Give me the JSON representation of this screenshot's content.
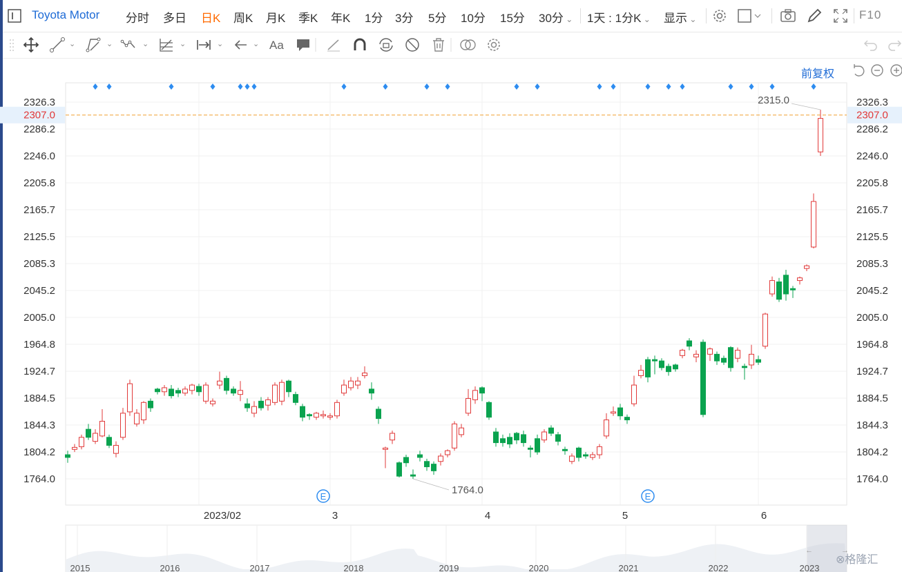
{
  "header": {
    "title": "Toyota Motor",
    "periods": [
      "分时",
      "多日",
      "日K",
      "周K",
      "月K",
      "季K",
      "年K",
      "1分",
      "3分",
      "5分",
      "10分",
      "15分",
      "30分"
    ],
    "active_period": "日K",
    "interval_select": "1天 : 1分K",
    "display_select": "显示",
    "f10_label": "F10"
  },
  "chart": {
    "adjust_label": "前复权",
    "price_ticks": [
      "2326.3",
      "2286.2",
      "2246.0",
      "2205.8",
      "2165.7",
      "2125.5",
      "2085.3",
      "2045.2",
      "2005.0",
      "1964.8",
      "1924.7",
      "1884.5",
      "1844.3",
      "1804.2",
      "1764.0"
    ],
    "current_price": "2307.0",
    "high_label": "2315.0",
    "low_label": "1764.0",
    "x_labels": [
      "2023/02",
      "3",
      "4",
      "5",
      "6"
    ],
    "event_marker": "E",
    "nav_years": [
      "2015",
      "2016",
      "2017",
      "2018",
      "2019",
      "2020",
      "2021",
      "2022",
      "2023"
    ]
  },
  "chart_data": {
    "type": "candlestick",
    "ylim": [
      1764.0,
      2326.3
    ],
    "x_ticks": [
      "2023/02",
      "3",
      "4",
      "5",
      "6"
    ],
    "candles": [
      [
        1800,
        1796,
        1806,
        1788
      ],
      [
        1808,
        1811,
        1816,
        1804
      ],
      [
        1812,
        1826,
        1830,
        1808
      ],
      [
        1838,
        1826,
        1846,
        1822
      ],
      [
        1820,
        1832,
        1838,
        1816
      ],
      [
        1828,
        1850,
        1868,
        1826
      ],
      [
        1826,
        1814,
        1830,
        1810
      ],
      [
        1802,
        1814,
        1820,
        1796
      ],
      [
        1826,
        1862,
        1870,
        1822
      ],
      [
        1864,
        1906,
        1912,
        1858
      ],
      [
        1846,
        1862,
        1868,
        1842
      ],
      [
        1852,
        1878,
        1880,
        1846
      ],
      [
        1880,
        1870,
        1884,
        1864
      ],
      [
        1898,
        1894,
        1900,
        1890
      ],
      [
        1894,
        1900,
        1904,
        1888
      ],
      [
        1898,
        1888,
        1904,
        1884
      ],
      [
        1896,
        1892,
        1900,
        1886
      ],
      [
        1892,
        1898,
        1902,
        1888
      ],
      [
        1896,
        1904,
        1906,
        1890
      ],
      [
        1902,
        1894,
        1906,
        1888
      ],
      [
        1880,
        1904,
        1908,
        1876
      ],
      [
        1876,
        1880,
        1884,
        1872
      ],
      [
        1904,
        1910,
        1924,
        1898
      ],
      [
        1914,
        1896,
        1918,
        1890
      ],
      [
        1898,
        1892,
        1902,
        1888
      ],
      [
        1890,
        1896,
        1910,
        1880
      ],
      [
        1876,
        1870,
        1884,
        1864
      ],
      [
        1862,
        1872,
        1880,
        1856
      ],
      [
        1880,
        1870,
        1886,
        1866
      ],
      [
        1874,
        1882,
        1886,
        1866
      ],
      [
        1878,
        1904,
        1908,
        1874
      ],
      [
        1880,
        1908,
        1912,
        1874
      ],
      [
        1910,
        1894,
        1912,
        1886
      ],
      [
        1890,
        1878,
        1894,
        1874
      ],
      [
        1872,
        1856,
        1876,
        1850
      ],
      [
        1860,
        1858,
        1862,
        1852
      ],
      [
        1856,
        1862,
        1864,
        1852
      ],
      [
        1858,
        1860,
        1866,
        1854
      ],
      [
        1856,
        1858,
        1862,
        1852
      ],
      [
        1858,
        1878,
        1882,
        1854
      ],
      [
        1892,
        1904,
        1912,
        1888
      ],
      [
        1900,
        1910,
        1916,
        1896
      ],
      [
        1904,
        1910,
        1916,
        1898
      ],
      [
        1918,
        1922,
        1932,
        1914
      ],
      [
        1898,
        1892,
        1908,
        1882
      ],
      [
        1868,
        1854,
        1872,
        1846
      ],
      [
        1808,
        1810,
        1812,
        1780
      ],
      [
        1822,
        1832,
        1836,
        1816
      ],
      [
        1788,
        1768,
        1790,
        1766
      ],
      [
        1796,
        1788,
        1800,
        1782
      ],
      [
        1770,
        1768,
        1778,
        1764
      ],
      [
        1800,
        1796,
        1806,
        1790
      ],
      [
        1790,
        1782,
        1794,
        1776
      ],
      [
        1786,
        1776,
        1790,
        1770
      ],
      [
        1790,
        1798,
        1802,
        1784
      ],
      [
        1800,
        1806,
        1808,
        1796
      ],
      [
        1810,
        1846,
        1850,
        1806
      ],
      [
        1830,
        1840,
        1846,
        1826
      ],
      [
        1862,
        1884,
        1898,
        1858
      ],
      [
        1882,
        1896,
        1902,
        1876
      ],
      [
        1900,
        1892,
        1902,
        1880
      ],
      [
        1878,
        1856,
        1880,
        1852
      ],
      [
        1834,
        1818,
        1840,
        1812
      ],
      [
        1824,
        1818,
        1830,
        1812
      ],
      [
        1826,
        1816,
        1832,
        1810
      ],
      [
        1832,
        1822,
        1834,
        1816
      ],
      [
        1830,
        1818,
        1836,
        1812
      ],
      [
        1810,
        1808,
        1814,
        1796
      ],
      [
        1824,
        1804,
        1830,
        1800
      ],
      [
        1822,
        1834,
        1838,
        1818
      ],
      [
        1840,
        1832,
        1844,
        1828
      ],
      [
        1830,
        1820,
        1834,
        1814
      ],
      [
        1808,
        1806,
        1812,
        1800
      ],
      [
        1790,
        1798,
        1802,
        1786
      ],
      [
        1810,
        1796,
        1812,
        1790
      ],
      [
        1800,
        1798,
        1804,
        1794
      ],
      [
        1796,
        1800,
        1804,
        1792
      ],
      [
        1800,
        1812,
        1816,
        1794
      ],
      [
        1828,
        1852,
        1862,
        1824
      ],
      [
        1862,
        1864,
        1872,
        1858
      ],
      [
        1870,
        1858,
        1876,
        1852
      ],
      [
        1856,
        1852,
        1860,
        1846
      ],
      [
        1876,
        1904,
        1918,
        1872
      ],
      [
        1918,
        1926,
        1934,
        1914
      ],
      [
        1942,
        1916,
        1946,
        1908
      ],
      [
        1942,
        1940,
        1948,
        1920
      ],
      [
        1940,
        1930,
        1944,
        1926
      ],
      [
        1932,
        1924,
        1936,
        1918
      ],
      [
        1934,
        1928,
        1936,
        1924
      ],
      [
        1948,
        1956,
        1958,
        1944
      ],
      [
        1970,
        1962,
        1974,
        1956
      ],
      [
        1946,
        1950,
        1956,
        1938
      ],
      [
        1968,
        1860,
        1972,
        1856
      ],
      [
        1950,
        1958,
        1960,
        1940
      ],
      [
        1950,
        1940,
        1954,
        1934
      ],
      [
        1944,
        1938,
        1948,
        1934
      ],
      [
        1960,
        1930,
        1962,
        1924
      ],
      [
        1944,
        1956,
        1960,
        1938
      ],
      [
        1932,
        1930,
        1936,
        1912
      ],
      [
        1934,
        1950,
        1964,
        1928
      ],
      [
        1942,
        1938,
        1948,
        1934
      ],
      [
        1962,
        2010,
        2012,
        1958
      ],
      [
        2040,
        2060,
        2066,
        2036
      ],
      [
        2058,
        2032,
        2064,
        2028
      ],
      [
        2068,
        2040,
        2076,
        2030
      ],
      [
        2048,
        2046,
        2052,
        2034
      ],
      [
        2060,
        2064,
        2066,
        2054
      ],
      [
        2078,
        2082,
        2084,
        2074
      ],
      [
        2110,
        2178,
        2190,
        2108
      ],
      [
        2252,
        2302,
        2315,
        2246
      ]
    ]
  }
}
